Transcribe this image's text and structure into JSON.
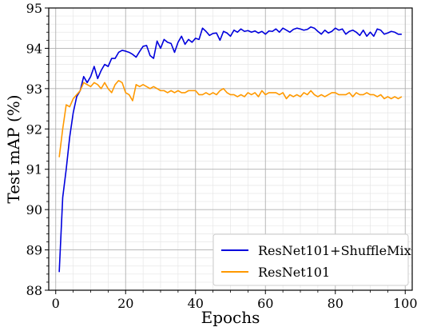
{
  "chart_data": {
    "type": "line",
    "title": "",
    "xlabel": "Epochs",
    "ylabel": "Test mAP (%)",
    "xlim": [
      -2,
      102
    ],
    "ylim": [
      88,
      95
    ],
    "xticks": [
      "0",
      "20",
      "40",
      "60",
      "80",
      "100"
    ],
    "yticks": [
      "88",
      "89",
      "90",
      "91",
      "92",
      "93",
      "94",
      "95"
    ],
    "grid": true,
    "legend_position": "bottom-right",
    "x": [
      1,
      2,
      3,
      4,
      5,
      6,
      7,
      8,
      9,
      10,
      11,
      12,
      13,
      14,
      15,
      16,
      17,
      18,
      19,
      20,
      21,
      22,
      23,
      24,
      25,
      26,
      27,
      28,
      29,
      30,
      31,
      32,
      33,
      34,
      35,
      36,
      37,
      38,
      39,
      40,
      41,
      42,
      43,
      44,
      45,
      46,
      47,
      48,
      49,
      50,
      51,
      52,
      53,
      54,
      55,
      56,
      57,
      58,
      59,
      60,
      61,
      62,
      63,
      64,
      65,
      66,
      67,
      68,
      69,
      70,
      71,
      72,
      73,
      74,
      75,
      76,
      77,
      78,
      79,
      80,
      81,
      82,
      83,
      84,
      85,
      86,
      87,
      88,
      89,
      90,
      91,
      92,
      93,
      94,
      95,
      96,
      97,
      98,
      99
    ],
    "series": [
      {
        "name": "ResNet101+ShuffleMix",
        "color": "#0000dd",
        "values": [
          88.45,
          90.3,
          91.0,
          91.8,
          92.4,
          92.8,
          92.95,
          93.3,
          93.15,
          93.3,
          93.55,
          93.25,
          93.45,
          93.6,
          93.55,
          93.75,
          93.75,
          93.9,
          93.95,
          93.93,
          93.9,
          93.85,
          93.78,
          93.92,
          94.05,
          94.07,
          93.82,
          93.75,
          94.18,
          94.0,
          94.22,
          94.15,
          94.12,
          93.9,
          94.15,
          94.3,
          94.1,
          94.22,
          94.15,
          94.25,
          94.22,
          94.5,
          94.42,
          94.32,
          94.37,
          94.38,
          94.2,
          94.42,
          94.38,
          94.3,
          94.45,
          94.4,
          94.48,
          94.42,
          94.44,
          94.4,
          94.43,
          94.38,
          94.42,
          94.35,
          94.43,
          94.42,
          94.48,
          94.4,
          94.5,
          94.45,
          94.4,
          94.47,
          94.5,
          94.48,
          94.45,
          94.47,
          94.53,
          94.5,
          94.42,
          94.35,
          94.45,
          94.38,
          94.42,
          94.5,
          94.45,
          94.48,
          94.35,
          94.42,
          94.45,
          94.4,
          94.32,
          94.45,
          94.3,
          94.4,
          94.3,
          94.48,
          94.45,
          94.35,
          94.38,
          94.42,
          94.4,
          94.35,
          94.35
        ]
      },
      {
        "name": "ResNet101",
        "color": "#ff9900",
        "values": [
          91.3,
          92.0,
          92.6,
          92.55,
          92.75,
          92.85,
          92.95,
          93.15,
          93.1,
          93.05,
          93.15,
          93.1,
          93.0,
          93.15,
          93.0,
          92.9,
          93.1,
          93.2,
          93.15,
          92.9,
          92.85,
          92.7,
          93.1,
          93.05,
          93.1,
          93.05,
          93.0,
          93.05,
          93.0,
          92.95,
          92.95,
          92.9,
          92.95,
          92.9,
          92.95,
          92.9,
          92.9,
          92.95,
          92.95,
          92.95,
          92.85,
          92.85,
          92.9,
          92.85,
          92.9,
          92.85,
          92.95,
          93.0,
          92.9,
          92.85,
          92.85,
          92.8,
          92.85,
          92.8,
          92.9,
          92.85,
          92.9,
          92.8,
          92.95,
          92.85,
          92.9,
          92.9,
          92.9,
          92.85,
          92.9,
          92.75,
          92.85,
          92.8,
          92.85,
          92.8,
          92.9,
          92.85,
          92.95,
          92.85,
          92.8,
          92.85,
          92.8,
          92.85,
          92.9,
          92.9,
          92.85,
          92.85,
          92.85,
          92.9,
          92.8,
          92.9,
          92.85,
          92.85,
          92.9,
          92.85,
          92.85,
          92.8,
          92.85,
          92.75,
          92.8,
          92.75,
          92.8,
          92.75,
          92.8
        ]
      }
    ]
  }
}
